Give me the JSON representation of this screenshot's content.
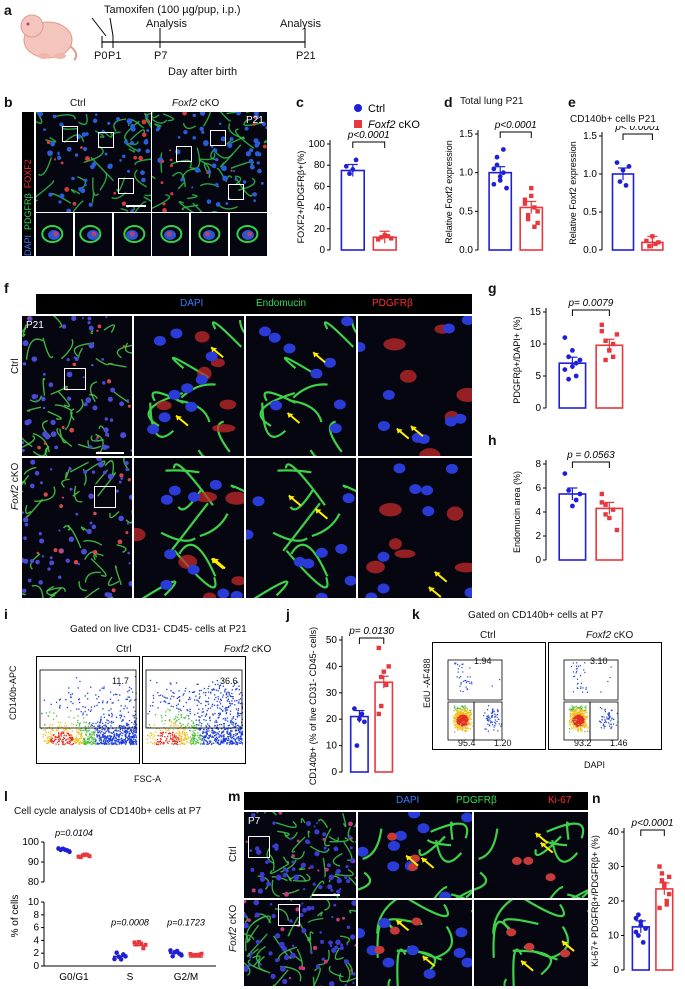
{
  "panels": {
    "a": {
      "label": "a",
      "tamoxifen": "Tamoxifen (100 µg/pup, i.p.)",
      "analysis1": "Analysis",
      "analysis2": "Analysis",
      "ticks": [
        "P0",
        "P1",
        "P7",
        "P21"
      ],
      "xlabel": "Day  after birth"
    },
    "b": {
      "label": "b",
      "ctrl": "Ctrl",
      "cko_gene": "Foxf2",
      "cko": " cKO",
      "age": "P21",
      "ch_dapi": "DAPI",
      "ch_pdgfrb": "PDGFRβ",
      "ch_foxf2": "FOXF2"
    },
    "c": {
      "label": "c"
    },
    "d": {
      "label": "d",
      "title": "Total lung P21"
    },
    "e": {
      "label": "e",
      "title": "CD140b+ cells P21"
    },
    "f": {
      "label": "f",
      "ch_dapi": "DAPI",
      "ch_endomucin": "Endomucin",
      "ch_pdgfrb": "PDGFRβ",
      "age": "P21",
      "ctrl": "Ctrl",
      "cko_gene": "Foxf2",
      "cko": " cKO"
    },
    "g": {
      "label": "g"
    },
    "h": {
      "label": "h"
    },
    "i": {
      "label": "i",
      "header": "Gated on live CD31- CD45- cells at P21",
      "ctrl": "Ctrl",
      "cko_gene": "Foxf2",
      "cko": " cKO",
      "gate_ctrl": "11.7",
      "gate_cko": "36.6",
      "ylabel": "CD140b-APC",
      "xlabel": "FSC-A"
    },
    "j": {
      "label": "j"
    },
    "k": {
      "label": "k",
      "header": "Gated on CD140b+ cells at P7",
      "ctrl": "Ctrl",
      "cko_gene": "Foxf2",
      "cko": " cKO",
      "ylabel": "EdU -AF488",
      "xlabel": "DAPI",
      "ctrl_vals": [
        "1.94",
        "95.4",
        "1.20"
      ],
      "cko_vals": [
        "3.10",
        "93.2",
        "1.46"
      ]
    },
    "l": {
      "label": "l",
      "title": "Cell cycle analysis of CD140b+ cells at P7"
    },
    "m": {
      "label": "m",
      "ch_dapi": "DAPI",
      "ch_pdgfrb": "PDGFRβ",
      "ch_ki67": "Ki-67",
      "age": "P7",
      "ctrl": "Ctrl",
      "cko_gene": "Foxf2",
      "cko": " cKO"
    },
    "n": {
      "label": "n"
    }
  },
  "legend": {
    "ctrl": "Ctrl",
    "cko_gene": "Foxf2",
    "cko": " cKO",
    "ctrl_color": "#1f1fd6",
    "cko_color": "#e8383d"
  },
  "chart_data": [
    {
      "id": "c",
      "type": "bar",
      "categories": [
        "Ctrl",
        "Foxf2 cKO"
      ],
      "values": [
        75,
        12
      ],
      "points": [
        [
          79,
          72,
          76,
          85
        ],
        [
          10,
          12,
          14,
          13,
          11
        ]
      ],
      "ylabel": "FOXF2+/PDGFRβ+(%)",
      "ylim": [
        0,
        100
      ],
      "yticks": [
        0,
        20,
        40,
        60,
        80,
        100
      ],
      "pvalue": "p<0.0001"
    },
    {
      "id": "d",
      "type": "bar",
      "categories": [
        "Ctrl",
        "Foxf2 cKO"
      ],
      "values": [
        1.0,
        0.55
      ],
      "points": [
        [
          1.05,
          1.2,
          0.95,
          1.3,
          0.8,
          0.85,
          1.1,
          0.9,
          1.0
        ],
        [
          0.6,
          0.45,
          0.7,
          0.3,
          0.5,
          0.65,
          0.4,
          0.8,
          0.55,
          0.35
        ]
      ],
      "ylabel": "Relative Foxf2 expression",
      "ylim": [
        0,
        1.5
      ],
      "yticks": [
        0.0,
        0.5,
        1.0,
        1.5
      ],
      "pvalue": "p<0.0001"
    },
    {
      "id": "e",
      "type": "bar",
      "categories": [
        "Ctrl",
        "Foxf2 cKO"
      ],
      "values": [
        1.0,
        0.1
      ],
      "points": [
        [
          1.15,
          0.9,
          1.05,
          0.85,
          1.1
        ],
        [
          0.12,
          0.05,
          0.18,
          0.08,
          0.1
        ]
      ],
      "ylabel": "Relative Foxf2 expression",
      "ylim": [
        0,
        1.5
      ],
      "yticks": [
        0.0,
        0.5,
        1.0,
        1.5
      ],
      "pvalue": "p< 0.0001"
    },
    {
      "id": "g",
      "type": "bar",
      "categories": [
        "Ctrl",
        "Foxf2 cKO"
      ],
      "values": [
        7,
        9.8
      ],
      "points": [
        [
          11,
          8,
          6.5,
          5,
          7.5,
          6,
          4.5,
          9,
          7
        ],
        [
          13,
          10.5,
          9,
          8,
          11.5,
          12,
          7.5,
          9,
          10
        ]
      ],
      "ylabel": "PDGFRβ+/DAPI+ (%)",
      "ylim": [
        0,
        15
      ],
      "yticks": [
        0,
        5,
        10,
        15
      ],
      "pvalue": "p= 0.0079"
    },
    {
      "id": "h",
      "type": "bar",
      "categories": [
        "Ctrl",
        "Foxf2 cKO"
      ],
      "values": [
        5.5,
        4.3
      ],
      "points": [
        [
          7.2,
          5.8,
          4.5,
          5,
          5.5
        ],
        [
          5.5,
          4.6,
          3.5,
          4.2,
          2.5,
          4.8,
          3.8
        ]
      ],
      "ylabel": "Endomucin area (%)",
      "ylim": [
        0,
        8
      ],
      "yticks": [
        0,
        2,
        4,
        6,
        8
      ],
      "pvalue": "p = 0.0563"
    },
    {
      "id": "j",
      "type": "bar",
      "categories": [
        "Ctrl",
        "Foxf2 cKO"
      ],
      "values": [
        21,
        34
      ],
      "points": [
        [
          24,
          10,
          20,
          22,
          19
        ],
        [
          47,
          25,
          38,
          33,
          40,
          22,
          36
        ]
      ],
      "ylabel": "CD140b+ (% of live CD31- CD45- cells)",
      "ylim": [
        0,
        50
      ],
      "yticks": [
        0,
        10,
        20,
        30,
        40,
        50
      ],
      "pvalue": "p= 0.0130"
    },
    {
      "id": "l",
      "type": "scatter",
      "categories": [
        "G0/G1",
        "S",
        "G2/M"
      ],
      "series": [
        {
          "name": "Ctrl",
          "values": [
            96,
            1.5,
            2.0
          ]
        },
        {
          "name": "Foxf2 cKO",
          "values": [
            93,
            3.2,
            1.4
          ]
        }
      ],
      "ylabel": "% of cells",
      "yticks": [
        0,
        2,
        4,
        6,
        8,
        10,
        80,
        90,
        100
      ],
      "pvalues": [
        "p=0.0104",
        "p=0.0008",
        "p=0.1723"
      ]
    },
    {
      "id": "n",
      "type": "bar",
      "categories": [
        "Ctrl",
        "Foxf2 cKO"
      ],
      "values": [
        12.5,
        23.5
      ],
      "points": [
        [
          15,
          10,
          14,
          8,
          12,
          11,
          16,
          13
        ],
        [
          30,
          28,
          25,
          20,
          22,
          18,
          26,
          24,
          19,
          27
        ]
      ],
      "ylabel": "Ki-67+ PDGFRβ+/PDGFRβ+ (%)",
      "ylim": [
        0,
        40
      ],
      "yticks": [
        0,
        10,
        20,
        30,
        40
      ],
      "pvalue": "p<0.0001"
    }
  ]
}
